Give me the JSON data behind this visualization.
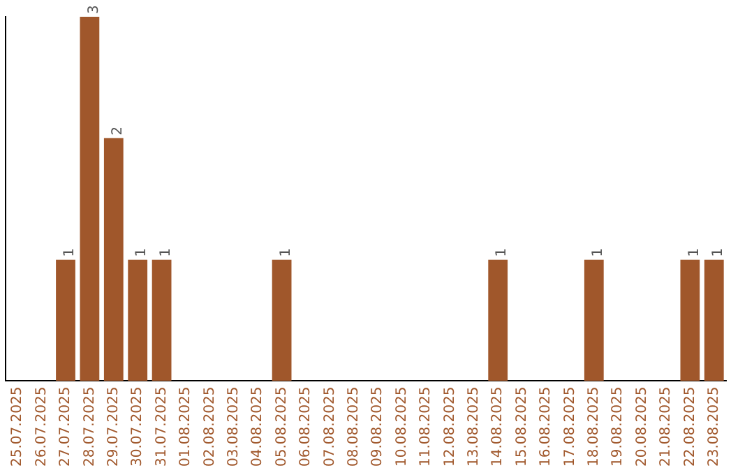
{
  "chart_data": {
    "type": "bar",
    "categories": [
      "25.07.2025",
      "26.07.2025",
      "27.07.2025",
      "28.07.2025",
      "29.07.2025",
      "30.07.2025",
      "31.07.2025",
      "01.08.2025",
      "02.08.2025",
      "03.08.2025",
      "04.08.2025",
      "05.08.2025",
      "06.08.2025",
      "07.08.2025",
      "08.08.2025",
      "09.08.2025",
      "10.08.2025",
      "11.08.2025",
      "12.08.2025",
      "13.08.2025",
      "14.08.2025",
      "15.08.2025",
      "16.08.2025",
      "17.08.2025",
      "18.08.2025",
      "19.08.2025",
      "20.08.2025",
      "21.08.2025",
      "22.08.2025",
      "23.08.2025"
    ],
    "values": [
      0,
      0,
      1,
      3,
      2,
      1,
      1,
      0,
      0,
      0,
      0,
      1,
      0,
      0,
      0,
      0,
      0,
      0,
      0,
      0,
      1,
      0,
      0,
      0,
      1,
      0,
      0,
      0,
      1,
      1
    ],
    "value_labels": [
      null,
      null,
      "1",
      "3",
      "2",
      "1",
      "1",
      null,
      null,
      null,
      null,
      "1",
      null,
      null,
      null,
      null,
      null,
      null,
      null,
      null,
      "1",
      null,
      null,
      null,
      "1",
      null,
      null,
      null,
      "1",
      "1"
    ],
    "color": "#a0572b",
    "grid": false,
    "legend": false,
    "tick_labels": "x"
  }
}
